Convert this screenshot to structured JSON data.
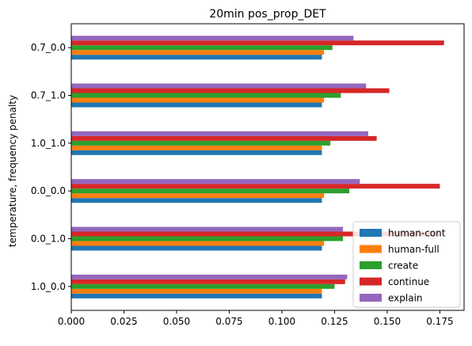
{
  "chart_data": {
    "type": "bar",
    "orientation": "horizontal",
    "title": "20min pos_prop_DET",
    "xlabel": "",
    "ylabel": "temperature, frequency penalty",
    "xlim": [
      0,
      0.1865
    ],
    "xticks": [
      "0.000",
      "0.025",
      "0.050",
      "0.075",
      "0.100",
      "0.125",
      "0.150",
      "0.175"
    ],
    "categories": [
      "0.7_0.0",
      "0.7_1.0",
      "1.0_1.0",
      "0.0_0.0",
      "0.0_1.0",
      "1.0_0.0"
    ],
    "series": [
      {
        "name": "human-cont",
        "color": "#1f77b4",
        "values": [
          0.119,
          0.119,
          0.119,
          0.119,
          0.119,
          0.119
        ]
      },
      {
        "name": "human-full",
        "color": "#ff7f0e",
        "values": [
          0.12,
          0.12,
          0.119,
          0.12,
          0.12,
          0.119
        ]
      },
      {
        "name": "create",
        "color": "#2ca02c",
        "values": [
          0.124,
          0.128,
          0.123,
          0.132,
          0.129,
          0.125
        ]
      },
      {
        "name": "continue",
        "color": "#d62728",
        "values": [
          0.177,
          0.151,
          0.145,
          0.175,
          0.175,
          0.13
        ]
      },
      {
        "name": "explain",
        "color": "#9467bd",
        "values": [
          0.134,
          0.14,
          0.141,
          0.137,
          0.129,
          0.131
        ]
      }
    ],
    "grid": false,
    "legend": "lower-right"
  }
}
